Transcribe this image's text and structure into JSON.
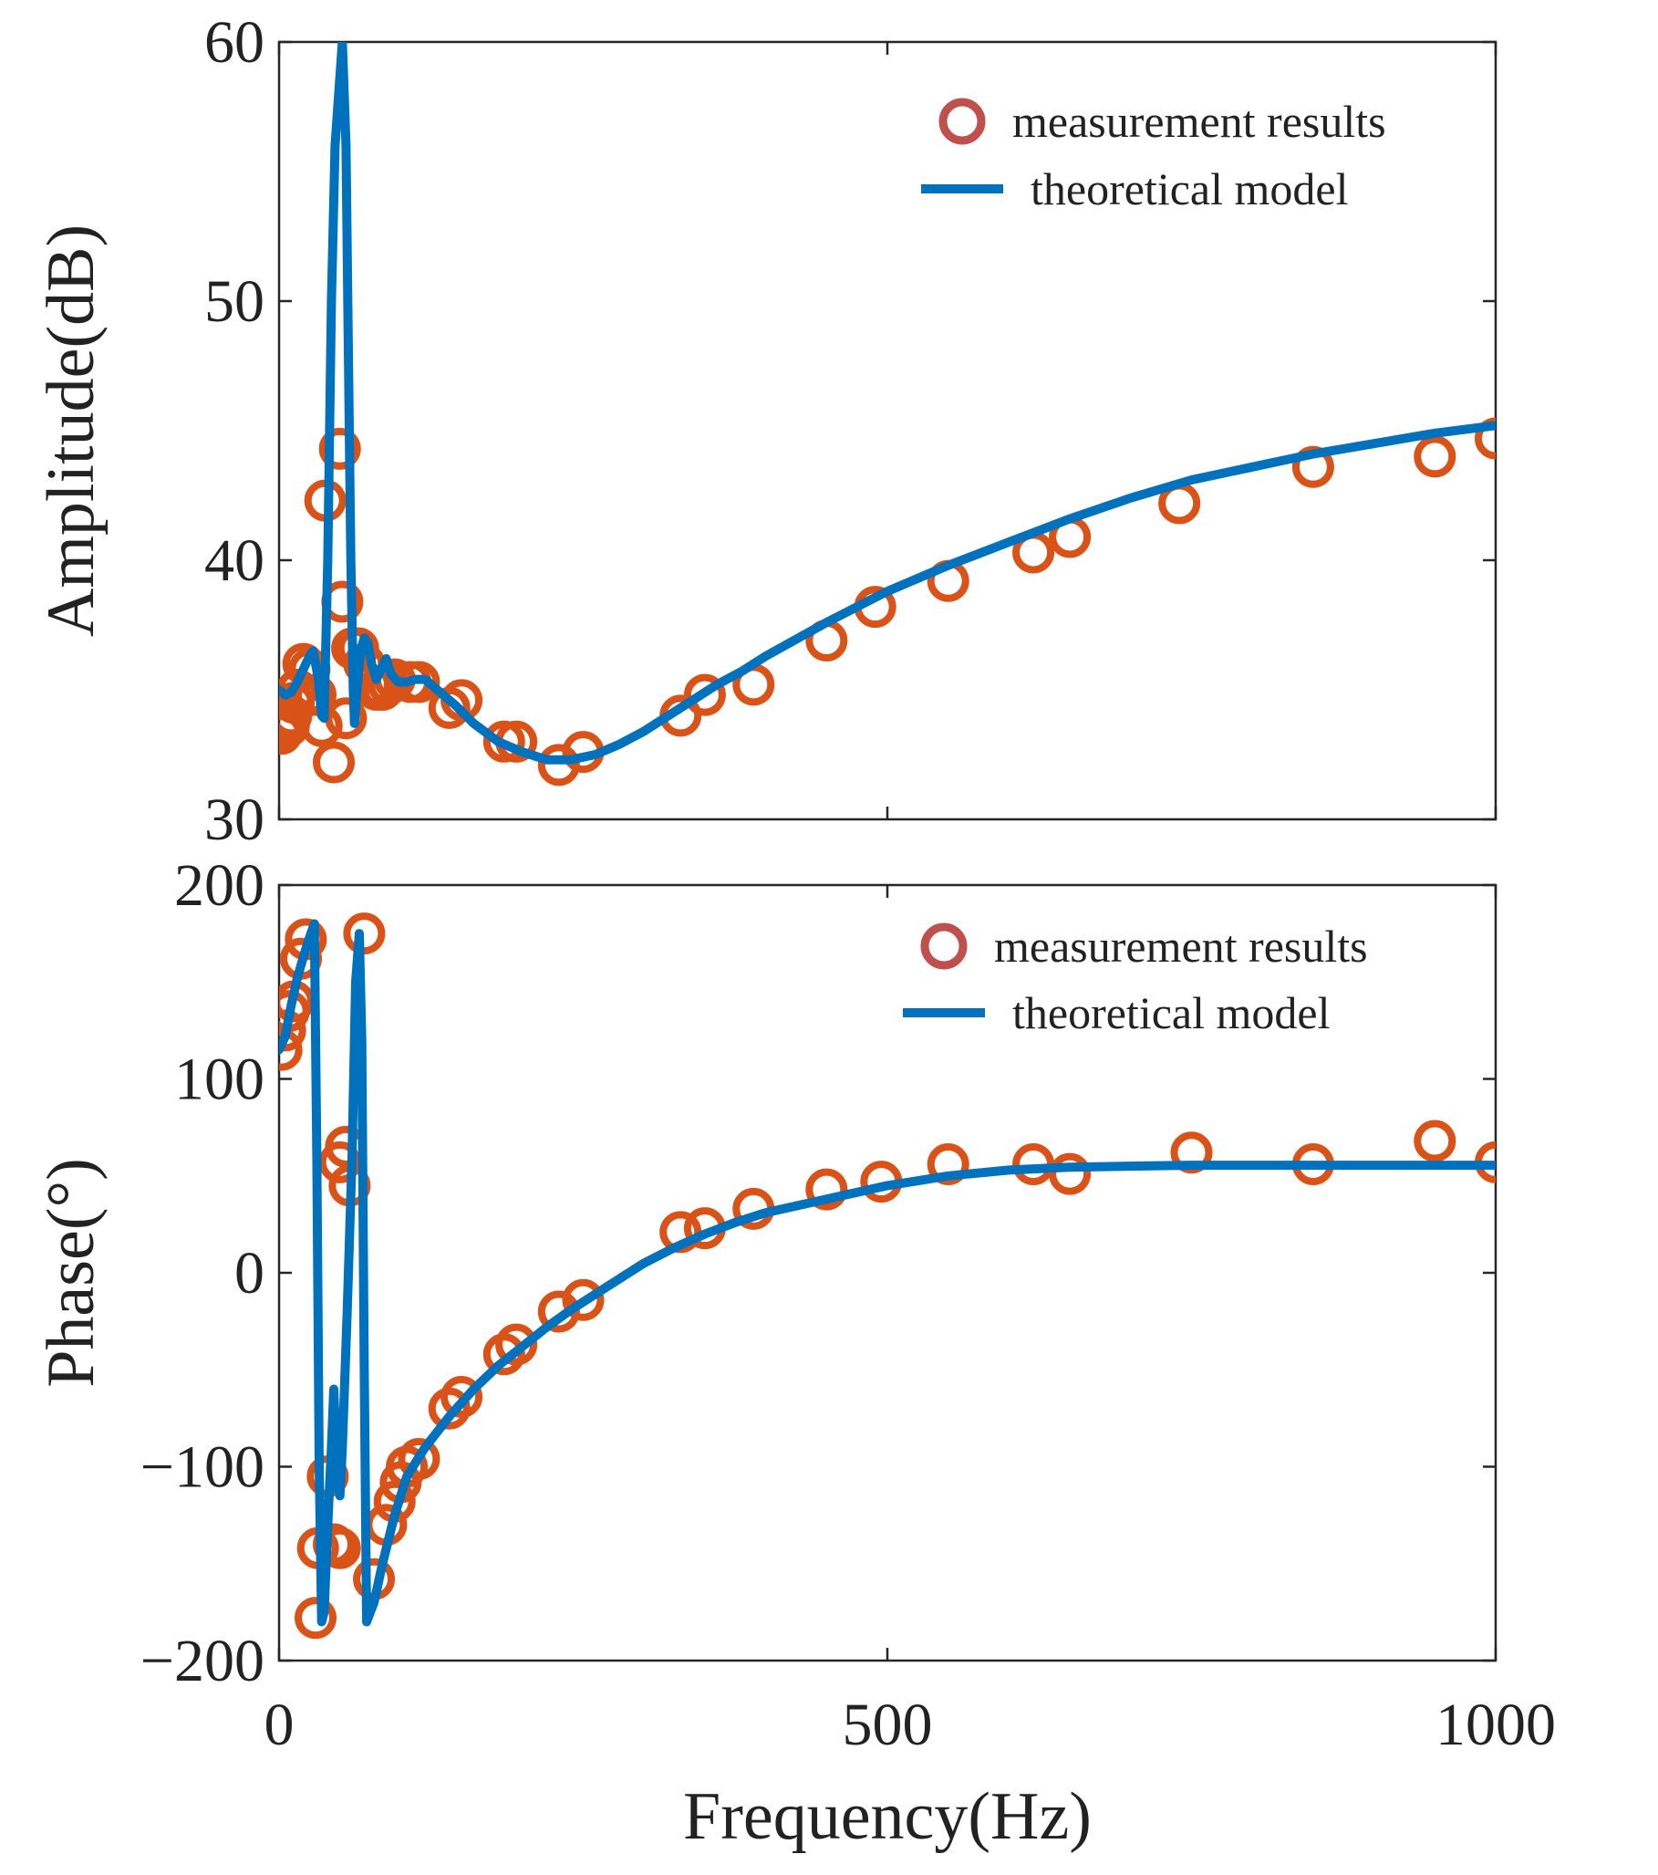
{
  "chart_data": [
    {
      "type": "line",
      "panel": "amplitude",
      "ylabel": "Amplitude(dB)",
      "xlabel": "",
      "xlim": [
        0,
        1000
      ],
      "ylim": [
        30,
        60
      ],
      "yticks": [
        30,
        40,
        50,
        60
      ],
      "xticks": [
        0,
        500,
        1000
      ],
      "show_xtick_labels": false,
      "grid": false,
      "legend": {
        "placement": "top-right",
        "entries": [
          "measurement results",
          "theoretical model"
        ]
      },
      "colors": {
        "measurement": "#D95319",
        "legend_marker": "#C0504D",
        "model": "#0072BD"
      },
      "series": [
        {
          "name": "theoretical model",
          "style": "line",
          "points": [
            [
              0,
              35.0
            ],
            [
              5,
              34.8
            ],
            [
              10,
              34.9
            ],
            [
              15,
              35.3
            ],
            [
              20,
              35.8
            ],
            [
              25,
              36.3
            ],
            [
              28,
              36.5
            ],
            [
              32,
              35.5
            ],
            [
              35,
              34.0
            ],
            [
              37,
              33.9
            ],
            [
              40,
              40
            ],
            [
              43,
              50
            ],
            [
              46,
              56
            ],
            [
              49,
              58
            ],
            [
              52,
              60
            ],
            [
              55,
              56
            ],
            [
              57,
              48
            ],
            [
              59,
              40
            ],
            [
              61,
              35
            ],
            [
              62,
              33.7
            ],
            [
              64,
              35
            ],
            [
              67,
              36.5
            ],
            [
              70,
              37.0
            ],
            [
              73,
              36.8
            ],
            [
              76,
              36.0
            ],
            [
              80,
              35.4
            ],
            [
              85,
              35.9
            ],
            [
              88,
              36.2
            ],
            [
              92,
              35.6
            ],
            [
              98,
              35.3
            ],
            [
              105,
              35.3
            ],
            [
              112,
              35.4
            ],
            [
              120,
              35.4
            ],
            [
              130,
              35.0
            ],
            [
              145,
              34.4
            ],
            [
              160,
              33.7
            ],
            [
              180,
              33.0
            ],
            [
              200,
              32.6
            ],
            [
              220,
              32.3
            ],
            [
              240,
              32.3
            ],
            [
              260,
              32.5
            ],
            [
              280,
              32.9
            ],
            [
              300,
              33.4
            ],
            [
              320,
              34.0
            ],
            [
              340,
              34.6
            ],
            [
              360,
              35.2
            ],
            [
              380,
              35.7
            ],
            [
              400,
              36.3
            ],
            [
              450,
              37.6
            ],
            [
              500,
              38.8
            ],
            [
              550,
              39.8
            ],
            [
              600,
              40.7
            ],
            [
              650,
              41.6
            ],
            [
              700,
              42.4
            ],
            [
              750,
              43.1
            ],
            [
              800,
              43.6
            ],
            [
              850,
              44.1
            ],
            [
              900,
              44.5
            ],
            [
              950,
              44.9
            ],
            [
              1000,
              45.2
            ]
          ]
        },
        {
          "name": "measurement results",
          "style": "markers",
          "points": [
            [
              2,
              33.3
            ],
            [
              4,
              33.5
            ],
            [
              6,
              33.8
            ],
            [
              8,
              33.6
            ],
            [
              10,
              34.0
            ],
            [
              12,
              34.5
            ],
            [
              15,
              35.0
            ],
            [
              20,
              36.0
            ],
            [
              25,
              35.8
            ],
            [
              30,
              34.8
            ],
            [
              35,
              33.6
            ],
            [
              38,
              42.3
            ],
            [
              45,
              32.2
            ],
            [
              50,
              44.3
            ],
            [
              52,
              38.4
            ],
            [
              55,
              33.9
            ],
            [
              60,
              36.6
            ],
            [
              65,
              36.6
            ],
            [
              70,
              36.0
            ],
            [
              75,
              35.2
            ],
            [
              80,
              35.0
            ],
            [
              85,
              35.0
            ],
            [
              90,
              35.2
            ],
            [
              95,
              35.4
            ],
            [
              108,
              35.3
            ],
            [
              115,
              35.3
            ],
            [
              140,
              34.3
            ],
            [
              150,
              34.6
            ],
            [
              185,
              33.0
            ],
            [
              195,
              33.0
            ],
            [
              230,
              32.1
            ],
            [
              250,
              32.6
            ],
            [
              330,
              34.0
            ],
            [
              350,
              34.8
            ],
            [
              390,
              35.2
            ],
            [
              450,
              36.9
            ],
            [
              490,
              38.2
            ],
            [
              550,
              39.2
            ],
            [
              620,
              40.3
            ],
            [
              650,
              40.9
            ],
            [
              740,
              42.2
            ],
            [
              850,
              43.6
            ],
            [
              950,
              44.0
            ],
            [
              1000,
              44.7
            ]
          ]
        }
      ]
    },
    {
      "type": "line",
      "panel": "phase",
      "ylabel": "Phase(°)",
      "xlabel": "Frequency(Hz)",
      "xlim": [
        0,
        1000
      ],
      "ylim": [
        -200,
        200
      ],
      "yticks": [
        -200,
        -100,
        0,
        100,
        200
      ],
      "ytick_labels": [
        "−200",
        "−100",
        "0",
        "100",
        "200"
      ],
      "xticks": [
        0,
        500,
        1000
      ],
      "xtick_labels": [
        "0",
        "500",
        "1000"
      ],
      "show_xtick_labels": true,
      "grid": false,
      "legend": {
        "placement": "top-right",
        "entries": [
          "measurement results",
          "theoretical model"
        ]
      },
      "colors": {
        "measurement": "#D95319",
        "legend_marker": "#C0504D",
        "model": "#0072BD"
      },
      "series": [
        {
          "name": "theoretical model",
          "style": "line",
          "points": [
            [
              0,
              115
            ],
            [
              5,
              122
            ],
            [
              10,
              138
            ],
            [
              15,
              152
            ],
            [
              20,
              163
            ],
            [
              25,
              173
            ],
            [
              29,
              180
            ],
            [
              31,
              60
            ],
            [
              33,
              -100
            ],
            [
              35,
              -180
            ],
            [
              37,
              -175
            ],
            [
              40,
              -130
            ],
            [
              43,
              -90
            ],
            [
              45,
              -60
            ],
            [
              48,
              -110
            ],
            [
              50,
              -115
            ],
            [
              52,
              -90
            ],
            [
              56,
              -20
            ],
            [
              60,
              60
            ],
            [
              63,
              150
            ],
            [
              66,
              175
            ],
            [
              68,
              120
            ],
            [
              70,
              -50
            ],
            [
              72,
              -180
            ],
            [
              78,
              -170
            ],
            [
              85,
              -150
            ],
            [
              95,
              -125
            ],
            [
              105,
              -105
            ],
            [
              120,
              -90
            ],
            [
              140,
              -74
            ],
            [
              160,
              -60
            ],
            [
              180,
              -48
            ],
            [
              200,
              -38
            ],
            [
              220,
              -28
            ],
            [
              240,
              -19
            ],
            [
              260,
              -11
            ],
            [
              280,
              -3
            ],
            [
              300,
              5
            ],
            [
              325,
              13
            ],
            [
              350,
              20
            ],
            [
              375,
              26
            ],
            [
              400,
              31
            ],
            [
              450,
              38
            ],
            [
              500,
              45
            ],
            [
              550,
              50
            ],
            [
              600,
              53
            ],
            [
              650,
              54.5
            ],
            [
              700,
              55
            ],
            [
              750,
              55.5
            ],
            [
              800,
              55.5
            ],
            [
              850,
              55.5
            ],
            [
              900,
              55.5
            ],
            [
              950,
              55.5
            ],
            [
              1000,
              55.5
            ]
          ]
        },
        {
          "name": "measurement results",
          "style": "markers",
          "points": [
            [
              2,
              115
            ],
            [
              5,
              125
            ],
            [
              8,
              135
            ],
            [
              12,
              140
            ],
            [
              18,
              162
            ],
            [
              22,
              172
            ],
            [
              30,
              -178
            ],
            [
              32,
              -142
            ],
            [
              40,
              -105
            ],
            [
              45,
              -140
            ],
            [
              50,
              -142
            ],
            [
              50,
              57
            ],
            [
              55,
              65
            ],
            [
              58,
              45
            ],
            [
              70,
              175
            ],
            [
              78,
              -158
            ],
            [
              88,
              -130
            ],
            [
              95,
              -118
            ],
            [
              100,
              -108
            ],
            [
              105,
              -100
            ],
            [
              115,
              -96
            ],
            [
              140,
              -70
            ],
            [
              150,
              -64
            ],
            [
              185,
              -42
            ],
            [
              195,
              -37
            ],
            [
              230,
              -20
            ],
            [
              250,
              -14
            ],
            [
              330,
              21
            ],
            [
              350,
              23
            ],
            [
              390,
              33
            ],
            [
              450,
              43
            ],
            [
              495,
              47
            ],
            [
              550,
              56
            ],
            [
              620,
              56
            ],
            [
              650,
              51
            ],
            [
              750,
              62
            ],
            [
              850,
              56
            ],
            [
              950,
              68
            ],
            [
              1000,
              57
            ]
          ]
        }
      ]
    }
  ]
}
